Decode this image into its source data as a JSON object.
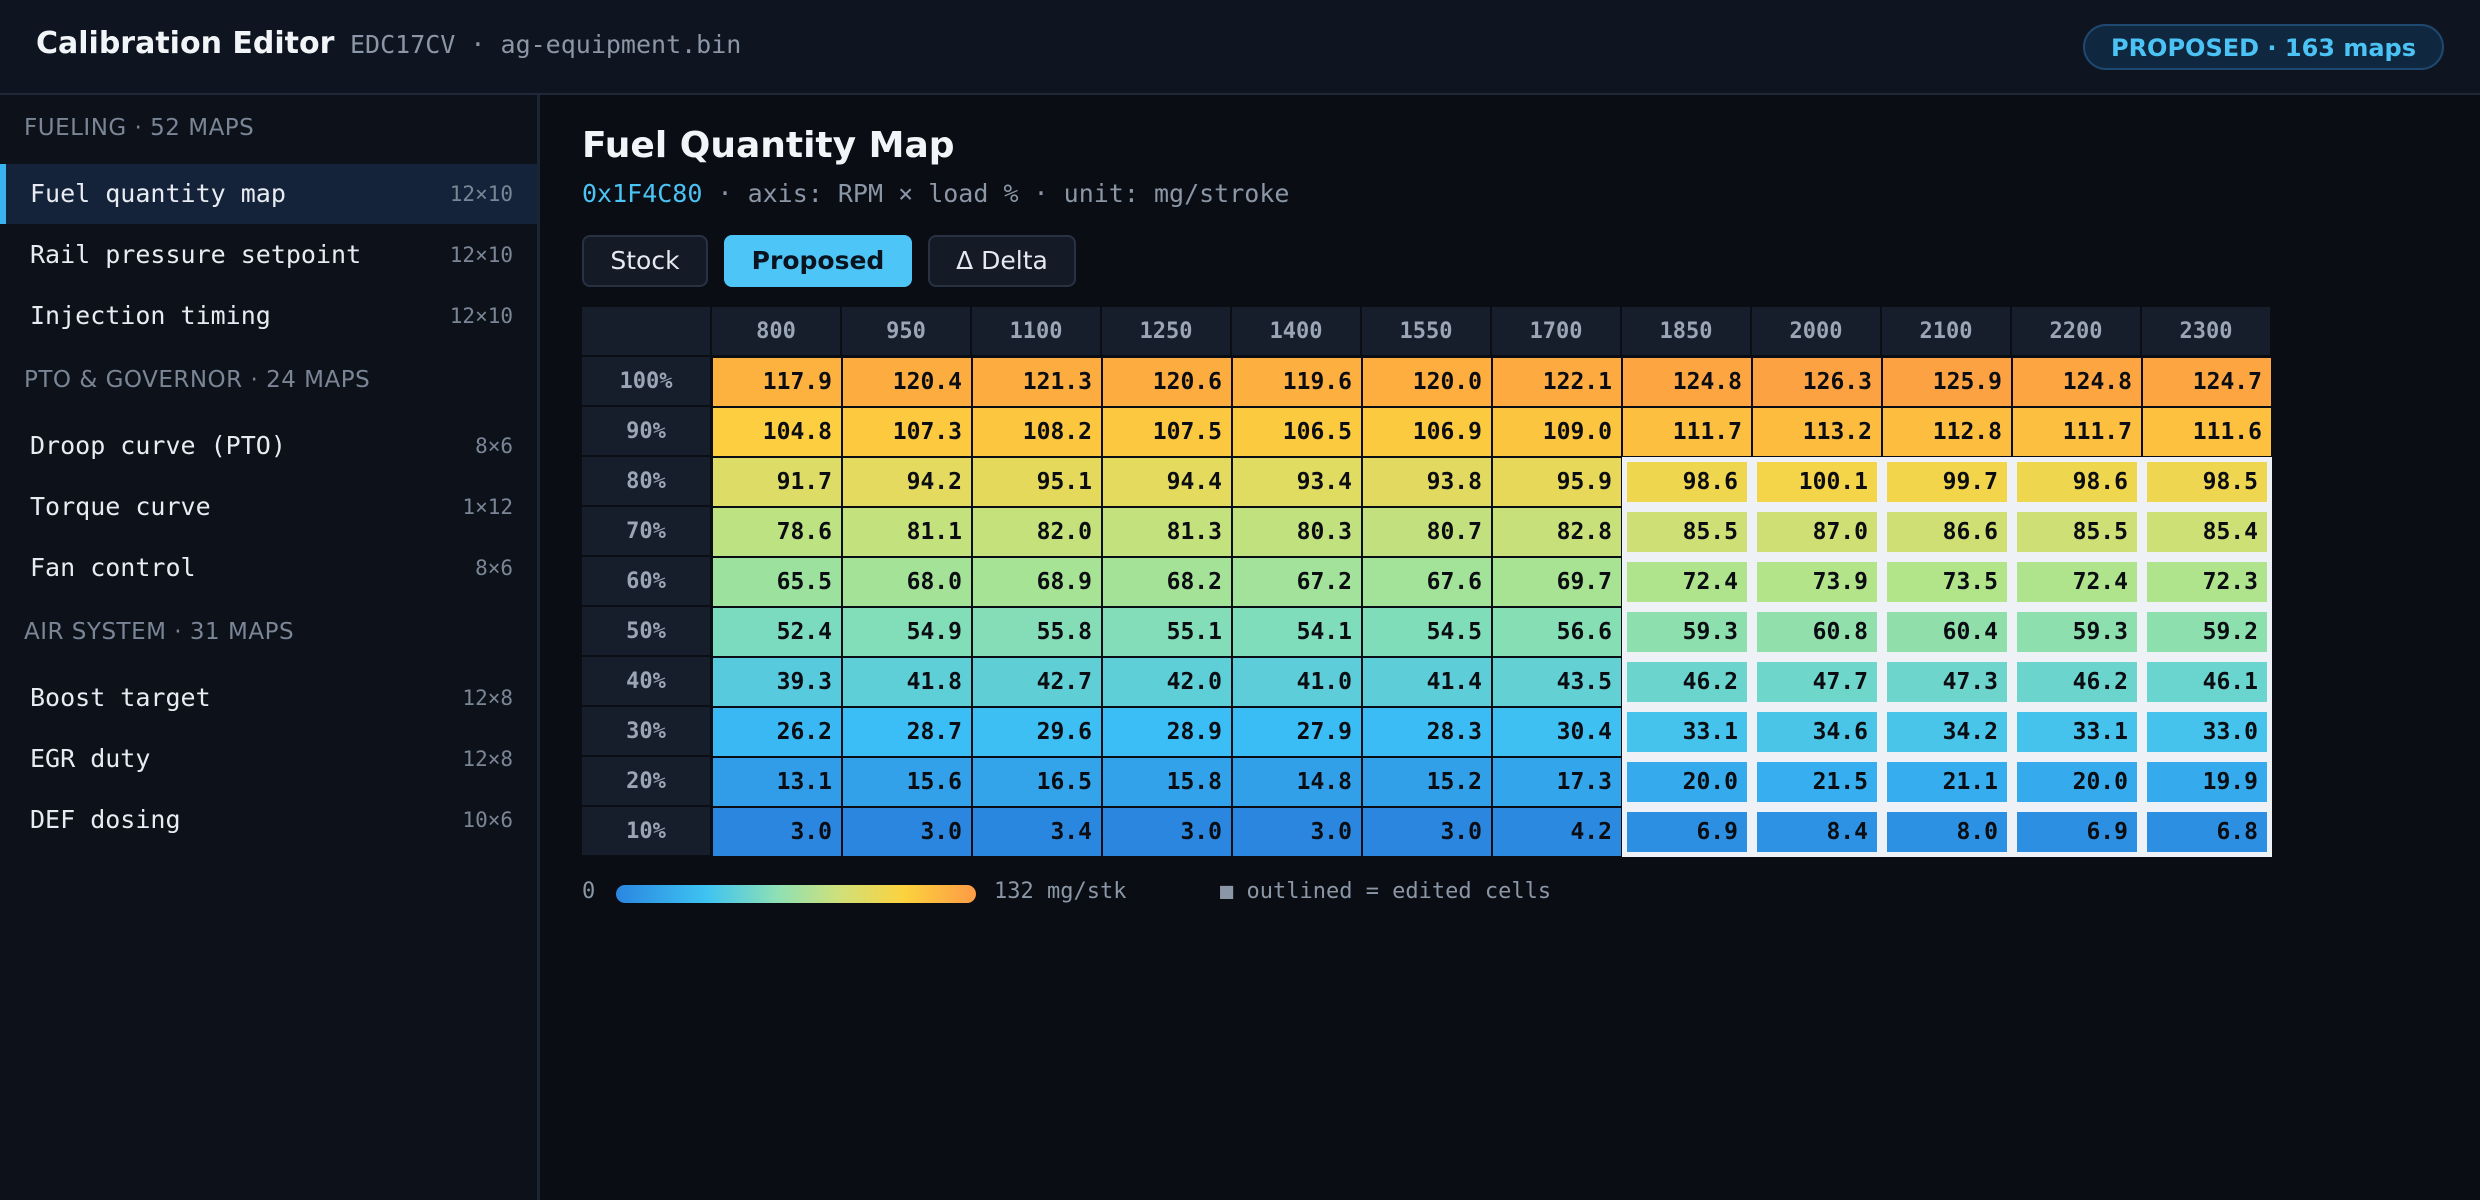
{
  "app": {
    "title": "Calibration Editor",
    "file_info": "EDC17CV · ag-equipment.bin",
    "status": "PROPOSED · 163 maps"
  },
  "sidebar": {
    "groups": [
      {
        "heading": "FUELING · 52 MAPS",
        "items": [
          {
            "label": "Fuel quantity map",
            "dims": "12×10",
            "active": true
          },
          {
            "label": "Rail pressure setpoint",
            "dims": "12×10"
          },
          {
            "label": "Injection timing",
            "dims": "12×10"
          }
        ]
      },
      {
        "heading": "PTO & GOVERNOR · 24 MAPS",
        "items": [
          {
            "label": "Droop curve (PTO)",
            "dims": "8×6"
          },
          {
            "label": "Torque curve",
            "dims": "1×12"
          },
          {
            "label": "Fan control",
            "dims": "8×6"
          }
        ]
      },
      {
        "heading": "AIR SYSTEM · 31 MAPS",
        "items": [
          {
            "label": "Boost target",
            "dims": "12×8"
          },
          {
            "label": "EGR duty",
            "dims": "12×8"
          },
          {
            "label": "DEF dosing",
            "dims": "10×6"
          }
        ]
      }
    ]
  },
  "map": {
    "title": "Fuel Quantity Map",
    "address": "0x1F4C80",
    "meta": " · axis: RPM × load % · unit: mg/stroke",
    "modes": [
      {
        "label": "Stock",
        "active": false
      },
      {
        "label": "Proposed",
        "active": true
      },
      {
        "label": "Δ Delta",
        "active": false
      }
    ],
    "rpm": [
      "800",
      "950",
      "1100",
      "1250",
      "1400",
      "1550",
      "1700",
      "1850",
      "2000",
      "2100",
      "2200",
      "2300"
    ],
    "load": [
      "100%",
      "90%",
      "80%",
      "70%",
      "60%",
      "50%",
      "40%",
      "30%",
      "20%",
      "10%"
    ],
    "values": [
      [
        "117.9",
        "120.4",
        "121.3",
        "120.6",
        "119.6",
        "120.0",
        "122.1",
        "124.8",
        "126.3",
        "125.9",
        "124.8",
        "124.7"
      ],
      [
        "104.8",
        "107.3",
        "108.2",
        "107.5",
        "106.5",
        "106.9",
        "109.0",
        "111.7",
        "113.2",
        "112.8",
        "111.7",
        "111.6"
      ],
      [
        "91.7",
        "94.2",
        "95.1",
        "94.4",
        "93.4",
        "93.8",
        "95.9",
        "98.6",
        "100.1",
        "99.7",
        "98.6",
        "98.5"
      ],
      [
        "78.6",
        "81.1",
        "82.0",
        "81.3",
        "80.3",
        "80.7",
        "82.8",
        "85.5",
        "87.0",
        "86.6",
        "85.5",
        "85.4"
      ],
      [
        "65.5",
        "68.0",
        "68.9",
        "68.2",
        "67.2",
        "67.6",
        "69.7",
        "72.4",
        "73.9",
        "73.5",
        "72.4",
        "72.3"
      ],
      [
        "52.4",
        "54.9",
        "55.8",
        "55.1",
        "54.1",
        "54.5",
        "56.6",
        "59.3",
        "60.8",
        "60.4",
        "59.3",
        "59.2"
      ],
      [
        "39.3",
        "41.8",
        "42.7",
        "42.0",
        "41.0",
        "41.4",
        "43.5",
        "46.2",
        "47.7",
        "47.3",
        "46.2",
        "46.1"
      ],
      [
        "26.2",
        "28.7",
        "29.6",
        "28.9",
        "27.9",
        "28.3",
        "30.4",
        "33.1",
        "34.6",
        "34.2",
        "33.1",
        "33.0"
      ],
      [
        "13.1",
        "15.6",
        "16.5",
        "15.8",
        "14.8",
        "15.2",
        "17.3",
        "20.0",
        "21.5",
        "21.1",
        "20.0",
        "19.9"
      ],
      [
        "3.0",
        "3.0",
        "3.4",
        "3.0",
        "3.0",
        "3.0",
        "4.2",
        "6.9",
        "8.4",
        "8.0",
        "6.9",
        "6.8"
      ]
    ],
    "edited_region": {
      "rows": [
        2,
        9
      ],
      "cols": [
        7,
        11
      ]
    },
    "scale_min": 0,
    "scale_max": 132,
    "legend_min": "0",
    "legend_max": "132 mg/stk",
    "legend_note": "■ outlined = edited cells"
  }
}
